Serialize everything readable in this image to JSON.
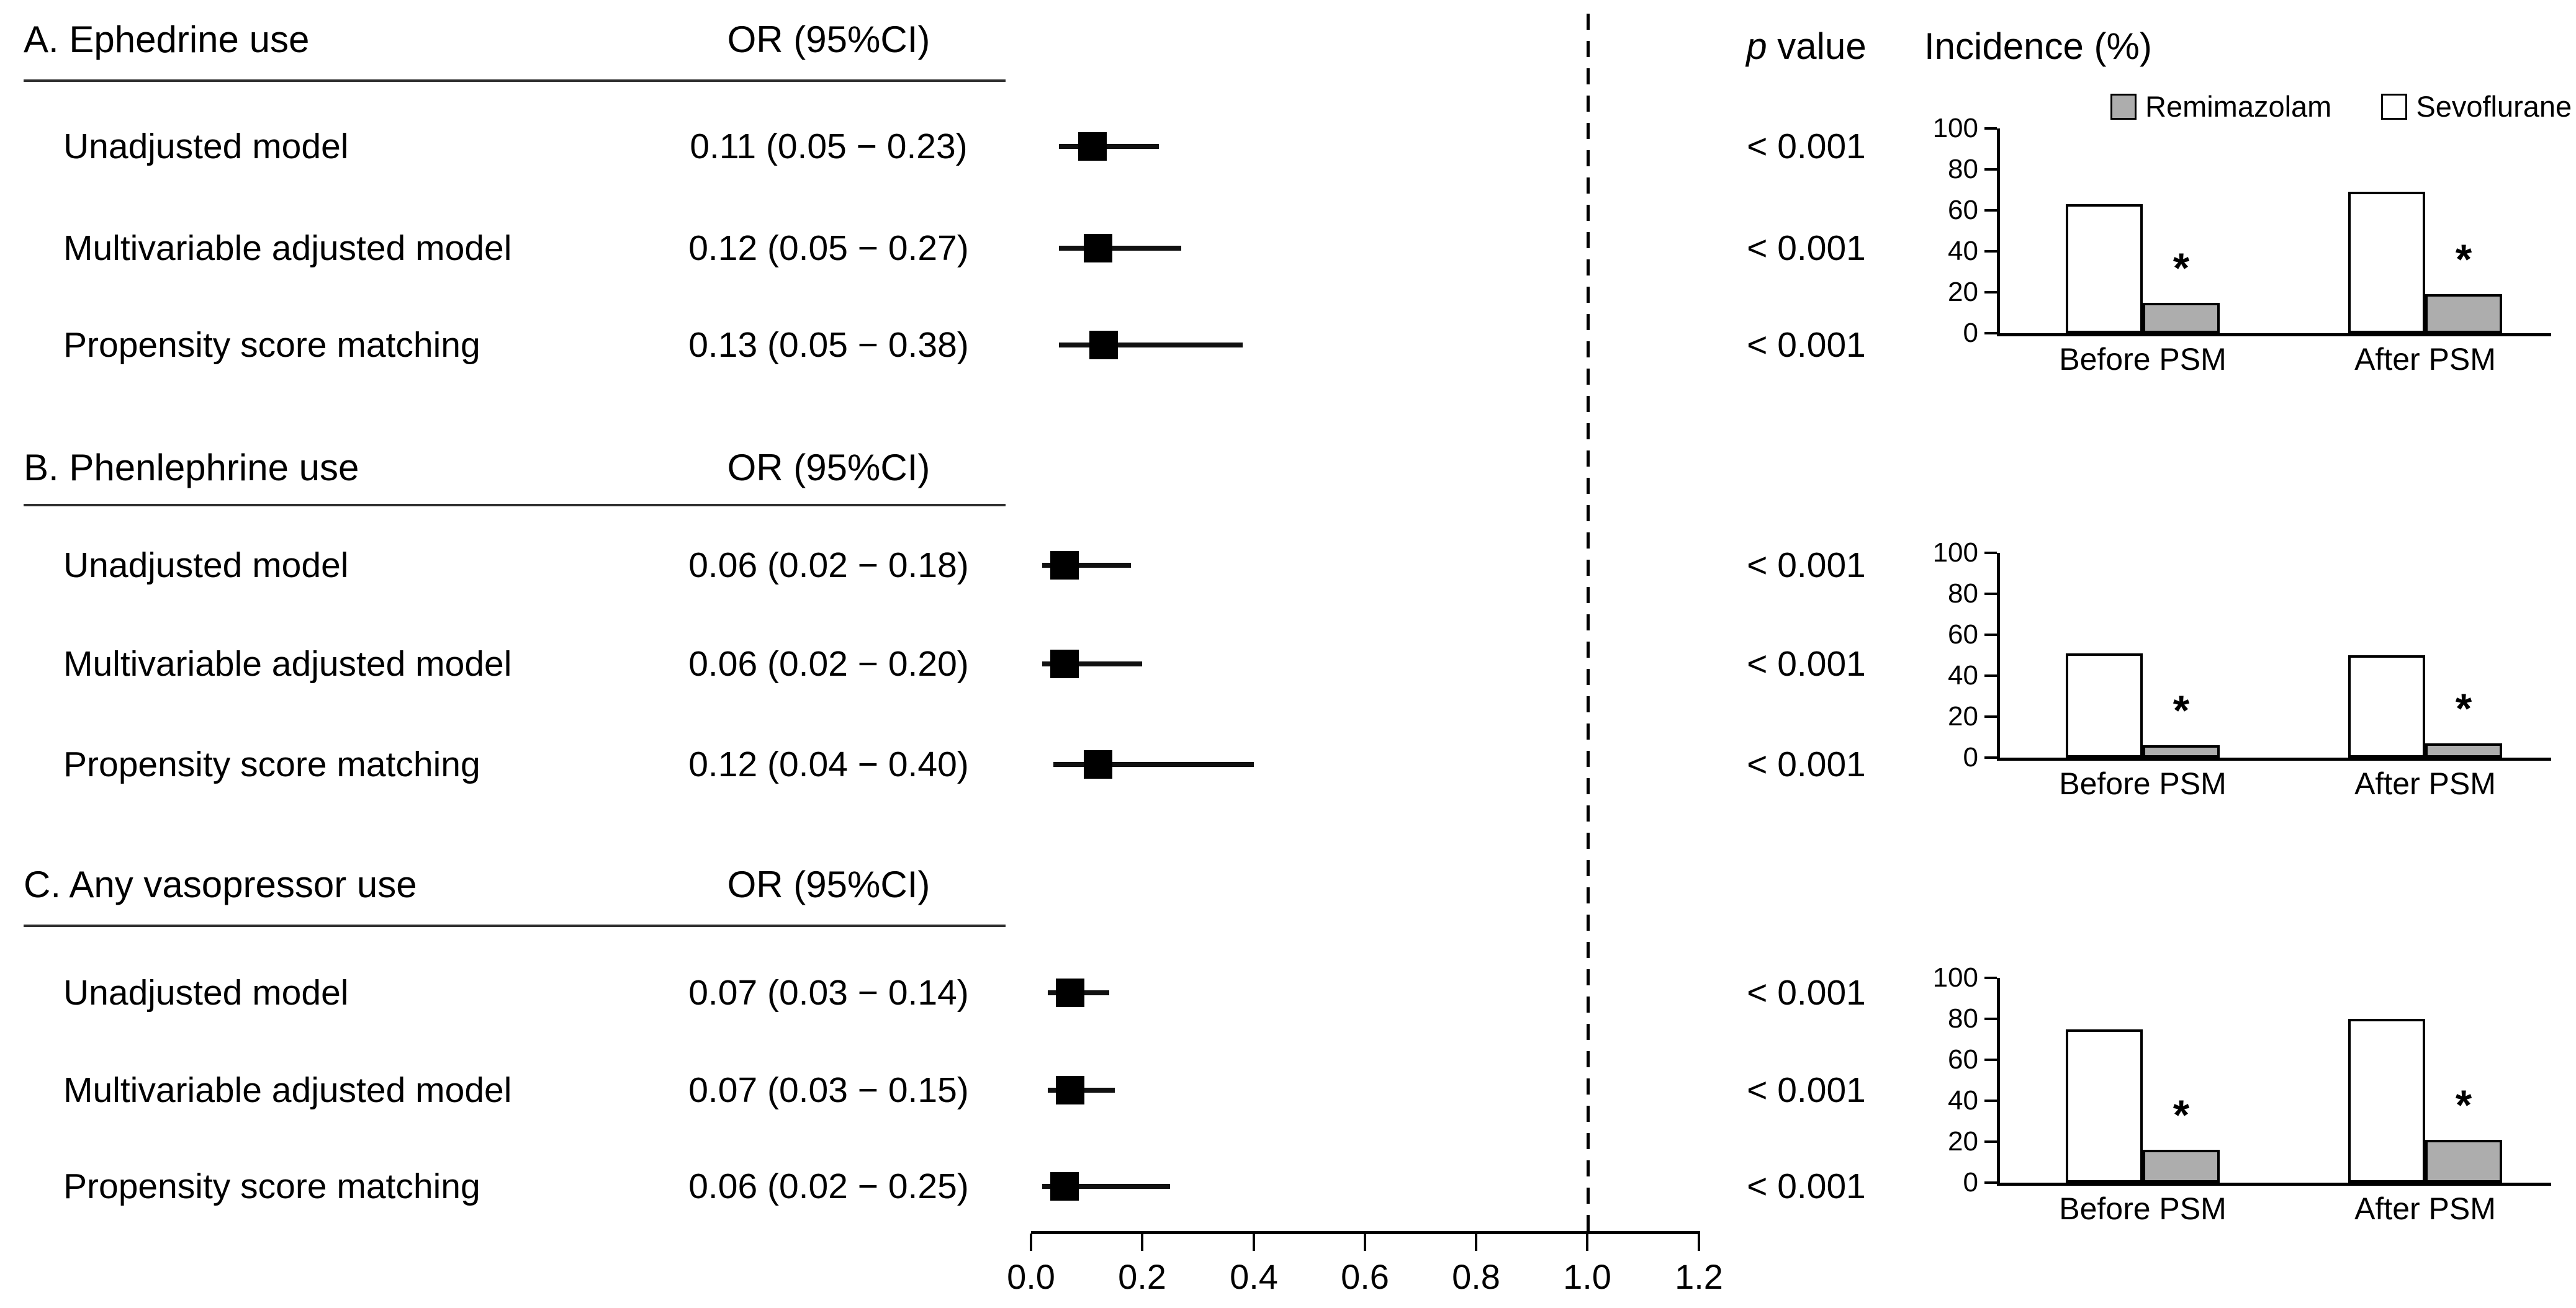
{
  "headers": {
    "p_italic": "p",
    "p_rest": " value",
    "incidence": "Incidence (%)"
  },
  "legend": {
    "items": [
      {
        "label": "Remimazolam",
        "color": "#adadad"
      },
      {
        "label": "Sevoflurane",
        "color": "#ffffff"
      }
    ]
  },
  "forest_axis": {
    "min": 0.0,
    "max": 1.2,
    "ticks": [
      "0.0",
      "0.2",
      "0.4",
      "0.6",
      "0.8",
      "1.0",
      "1.2"
    ],
    "ref_line": 1.0
  },
  "sections": [
    {
      "id": "A",
      "label": "A. Ephedrine use",
      "or_header": "OR (95%CI)",
      "rows": [
        {
          "label": "Unadjusted model",
          "or_text": "0.11 (0.05 − 0.23)",
          "or": 0.11,
          "ci_low": 0.05,
          "ci_high": 0.23,
          "p": "< 0.001"
        },
        {
          "label": "Multivariable adjusted model",
          "or_text": "0.12 (0.05 − 0.27)",
          "or": 0.12,
          "ci_low": 0.05,
          "ci_high": 0.27,
          "p": "< 0.001"
        },
        {
          "label": "Propensity score matching",
          "or_text": "0.13 (0.05 − 0.38)",
          "or": 0.13,
          "ci_low": 0.05,
          "ci_high": 0.38,
          "p": "< 0.001"
        }
      ],
      "chart": {
        "type": "bar",
        "categories": [
          "Before PSM",
          "After PSM"
        ],
        "series": [
          {
            "name": "Sevoflurane",
            "fill": "#ffffff",
            "values": [
              63,
              69
            ]
          },
          {
            "name": "Remimazolam",
            "fill": "#adadad",
            "values": [
              15,
              19
            ]
          }
        ],
        "ylim": [
          0,
          100
        ],
        "yticks": [
          0,
          20,
          40,
          60,
          80,
          100
        ],
        "sig": "*"
      }
    },
    {
      "id": "B",
      "label": "B. Phenlephrine use",
      "or_header": "OR (95%CI)",
      "rows": [
        {
          "label": "Unadjusted model",
          "or_text": "0.06 (0.02 − 0.18)",
          "or": 0.06,
          "ci_low": 0.02,
          "ci_high": 0.18,
          "p": "< 0.001"
        },
        {
          "label": "Multivariable adjusted model",
          "or_text": "0.06 (0.02 − 0.20)",
          "or": 0.06,
          "ci_low": 0.02,
          "ci_high": 0.2,
          "p": "< 0.001"
        },
        {
          "label": "Propensity score matching",
          "or_text": "0.12 (0.04 − 0.40)",
          "or": 0.12,
          "ci_low": 0.04,
          "ci_high": 0.4,
          "p": "< 0.001"
        }
      ],
      "chart": {
        "type": "bar",
        "categories": [
          "Before PSM",
          "After PSM"
        ],
        "series": [
          {
            "name": "Sevoflurane",
            "fill": "#ffffff",
            "values": [
              51,
              50
            ]
          },
          {
            "name": "Remimazolam",
            "fill": "#adadad",
            "values": [
              6,
              7
            ]
          }
        ],
        "ylim": [
          0,
          100
        ],
        "yticks": [
          0,
          20,
          40,
          60,
          80,
          100
        ],
        "sig": "*"
      }
    },
    {
      "id": "C",
      "label": "C. Any vasopressor use",
      "or_header": "OR (95%CI)",
      "rows": [
        {
          "label": "Unadjusted model",
          "or_text": "0.07 (0.03 − 0.14)",
          "or": 0.07,
          "ci_low": 0.03,
          "ci_high": 0.14,
          "p": "< 0.001"
        },
        {
          "label": "Multivariable adjusted model",
          "or_text": "0.07 (0.03 − 0.15)",
          "or": 0.07,
          "ci_low": 0.03,
          "ci_high": 0.15,
          "p": "< 0.001"
        },
        {
          "label": "Propensity score matching",
          "or_text": "0.06 (0.02 − 0.25)",
          "or": 0.06,
          "ci_low": 0.02,
          "ci_high": 0.25,
          "p": "< 0.001"
        }
      ],
      "chart": {
        "type": "bar",
        "categories": [
          "Before PSM",
          "After PSM"
        ],
        "series": [
          {
            "name": "Sevoflurane",
            "fill": "#ffffff",
            "values": [
              75,
              80
            ]
          },
          {
            "name": "Remimazolam",
            "fill": "#adadad",
            "values": [
              16,
              21
            ]
          }
        ],
        "ylim": [
          0,
          100
        ],
        "yticks": [
          0,
          20,
          40,
          60,
          80,
          100
        ],
        "sig": "*"
      }
    }
  ],
  "chart_data": [
    {
      "type": "scatter",
      "subtype": "forest",
      "title": "Odds ratios with 95% CI (reference line at 1.0)",
      "xlabel": "",
      "x_ticks": [
        0.0,
        0.2,
        0.4,
        0.6,
        0.8,
        1.0,
        1.2
      ],
      "xlim": [
        0.0,
        1.2
      ],
      "reference_line": 1.0,
      "marker": "black-square",
      "groups": [
        {
          "name": "A. Ephedrine use",
          "rows": [
            {
              "label": "Unadjusted model",
              "or": 0.11,
              "ci": [
                0.05,
                0.23
              ],
              "p": "< 0.001"
            },
            {
              "label": "Multivariable adjusted model",
              "or": 0.12,
              "ci": [
                0.05,
                0.27
              ],
              "p": "< 0.001"
            },
            {
              "label": "Propensity score matching",
              "or": 0.13,
              "ci": [
                0.05,
                0.38
              ],
              "p": "< 0.001"
            }
          ]
        },
        {
          "name": "B. Phenlephrine use",
          "rows": [
            {
              "label": "Unadjusted model",
              "or": 0.06,
              "ci": [
                0.02,
                0.18
              ],
              "p": "< 0.001"
            },
            {
              "label": "Multivariable adjusted model",
              "or": 0.06,
              "ci": [
                0.02,
                0.2
              ],
              "p": "< 0.001"
            },
            {
              "label": "Propensity score matching",
              "or": 0.12,
              "ci": [
                0.04,
                0.4
              ],
              "p": "< 0.001"
            }
          ]
        },
        {
          "name": "C. Any vasopressor use",
          "rows": [
            {
              "label": "Unadjusted model",
              "or": 0.07,
              "ci": [
                0.03,
                0.14
              ],
              "p": "< 0.001"
            },
            {
              "label": "Multivariable adjusted model",
              "or": 0.07,
              "ci": [
                0.03,
                0.15
              ],
              "p": "< 0.001"
            },
            {
              "label": "Propensity score matching",
              "or": 0.06,
              "ci": [
                0.02,
                0.25
              ],
              "p": "< 0.001"
            }
          ]
        }
      ]
    },
    {
      "type": "bar",
      "title": "A. Ephedrine use — Incidence (%)",
      "categories": [
        "Before PSM",
        "After PSM"
      ],
      "series": [
        {
          "name": "Sevoflurane",
          "values": [
            63,
            69
          ]
        },
        {
          "name": "Remimazolam",
          "values": [
            15,
            19
          ]
        }
      ],
      "ylabel": "Incidence (%)",
      "ylim": [
        0,
        100
      ],
      "yticks": [
        0,
        20,
        40,
        60,
        80,
        100
      ],
      "legend_position": "top",
      "annotations": [
        "* above Remimazolam bars"
      ]
    },
    {
      "type": "bar",
      "title": "B. Phenlephrine use — Incidence (%)",
      "categories": [
        "Before PSM",
        "After PSM"
      ],
      "series": [
        {
          "name": "Sevoflurane",
          "values": [
            51,
            50
          ]
        },
        {
          "name": "Remimazolam",
          "values": [
            6,
            7
          ]
        }
      ],
      "ylabel": "Incidence (%)",
      "ylim": [
        0,
        100
      ],
      "yticks": [
        0,
        20,
        40,
        60,
        80,
        100
      ],
      "annotations": [
        "* above Remimazolam bars"
      ]
    },
    {
      "type": "bar",
      "title": "C. Any vasopressor use — Incidence (%)",
      "categories": [
        "Before PSM",
        "After PSM"
      ],
      "series": [
        {
          "name": "Sevoflurane",
          "values": [
            75,
            80
          ]
        },
        {
          "name": "Remimazolam",
          "values": [
            16,
            21
          ]
        }
      ],
      "ylabel": "Incidence (%)",
      "ylim": [
        0,
        100
      ],
      "yticks": [
        0,
        20,
        40,
        60,
        80,
        100
      ],
      "annotations": [
        "* above Remimazolam bars"
      ]
    }
  ]
}
